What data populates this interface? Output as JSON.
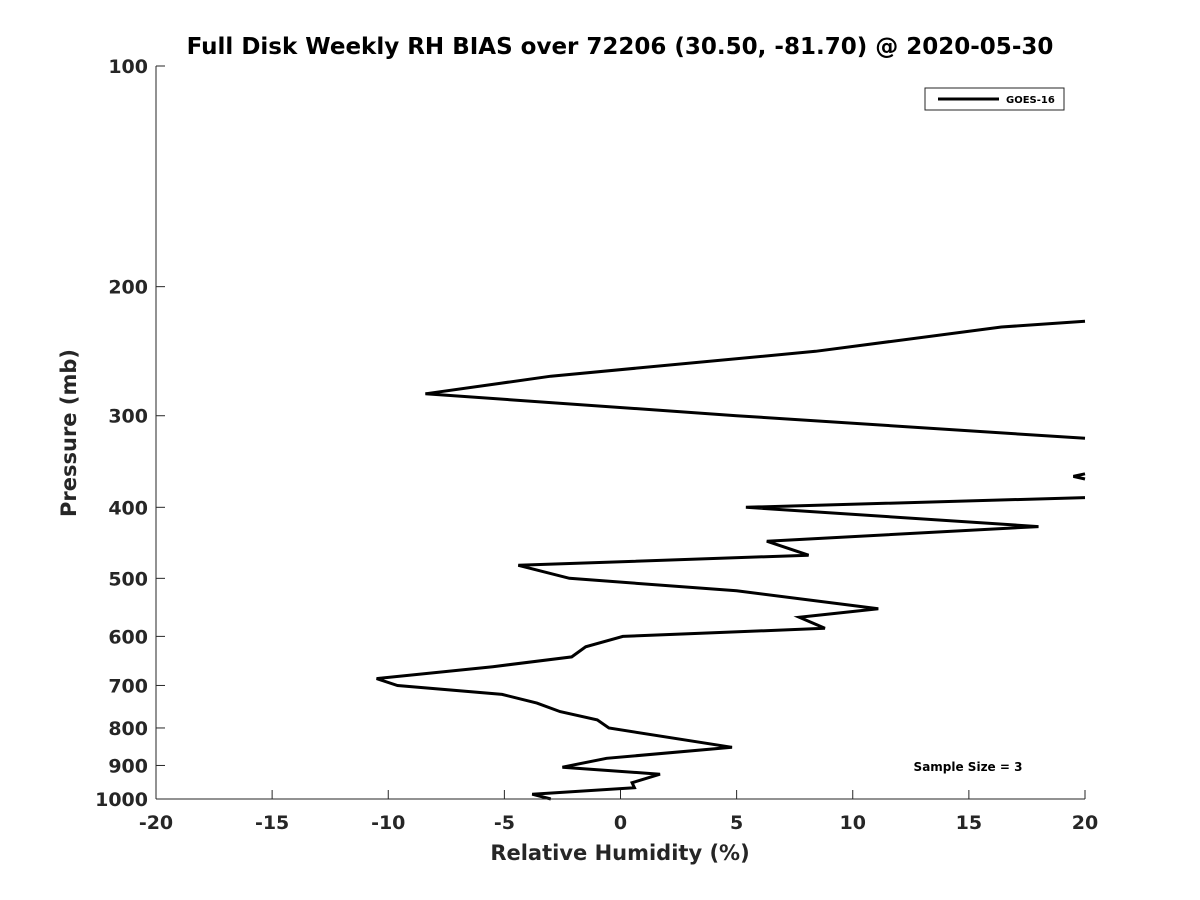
{
  "chart_data": {
    "type": "line",
    "title": "Full Disk Weekly RH BIAS over 72206 (30.50, -81.70) @ 2020-05-30",
    "xlabel": "Relative Humidity (%)",
    "ylabel": "Pressure (mb)",
    "xlim": [
      -20,
      20
    ],
    "ylim": [
      100,
      1000
    ],
    "y_scale": "log",
    "y_reversed": true,
    "x_ticks": [
      -20,
      -15,
      -10,
      -5,
      0,
      5,
      10,
      15,
      20
    ],
    "y_ticks": [
      100,
      200,
      300,
      400,
      500,
      600,
      700,
      800,
      900,
      1000
    ],
    "grid": false,
    "legend_position": "top-right",
    "annotation": "Sample Size = 3",
    "series_style": {
      "color": "#000000"
    },
    "series": [
      {
        "name": "GOES-16",
        "segments": [
          [
            {
              "rh": -3.0,
              "p": 1000
            },
            {
              "rh": -3.8,
              "p": 985
            },
            {
              "rh": 0.6,
              "p": 965
            },
            {
              "rh": 0.5,
              "p": 950
            },
            {
              "rh": 1.7,
              "p": 925
            },
            {
              "rh": -2.5,
              "p": 905
            },
            {
              "rh": -0.6,
              "p": 880
            },
            {
              "rh": 4.8,
              "p": 850
            },
            {
              "rh": -0.5,
              "p": 800
            },
            {
              "rh": -1.0,
              "p": 780
            },
            {
              "rh": -2.6,
              "p": 760
            },
            {
              "rh": -3.6,
              "p": 740
            },
            {
              "rh": -5.1,
              "p": 720
            },
            {
              "rh": -9.6,
              "p": 700
            },
            {
              "rh": -10.5,
              "p": 685
            },
            {
              "rh": -5.5,
              "p": 660
            },
            {
              "rh": -2.1,
              "p": 640
            },
            {
              "rh": -1.5,
              "p": 620
            },
            {
              "rh": 0.1,
              "p": 600
            },
            {
              "rh": 8.8,
              "p": 585
            },
            {
              "rh": 7.7,
              "p": 565
            },
            {
              "rh": 11.1,
              "p": 550
            },
            {
              "rh": 5.0,
              "p": 520
            },
            {
              "rh": -2.2,
              "p": 500
            },
            {
              "rh": -4.4,
              "p": 480
            },
            {
              "rh": 8.1,
              "p": 465
            },
            {
              "rh": 6.3,
              "p": 445
            },
            {
              "rh": 18.0,
              "p": 425
            },
            {
              "rh": 5.4,
              "p": 400
            },
            {
              "rh": 20.0,
              "p": 388
            }
          ],
          [
            {
              "rh": 20.0,
              "p": 360
            },
            {
              "rh": 19.5,
              "p": 363
            },
            {
              "rh": 20.0,
              "p": 366
            }
          ],
          [
            {
              "rh": 20.0,
              "p": 322
            },
            {
              "rh": 5.0,
              "p": 300
            },
            {
              "rh": -8.4,
              "p": 280
            },
            {
              "rh": -3.0,
              "p": 265
            },
            {
              "rh": 8.4,
              "p": 245
            },
            {
              "rh": 16.4,
              "p": 227
            },
            {
              "rh": 20.0,
              "p": 223
            }
          ]
        ]
      }
    ]
  }
}
